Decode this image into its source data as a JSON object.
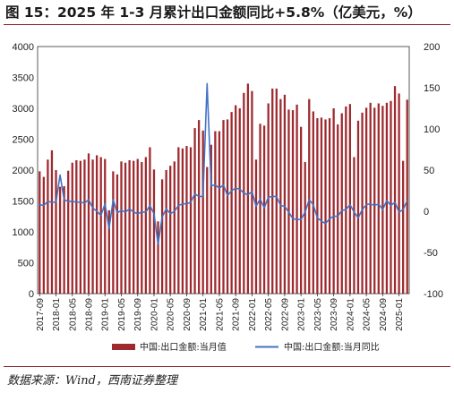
{
  "title": "图 15：2025 年 1-3 月累计出口金额同比+5.8%（亿美元，%）",
  "source": "数据来源：Wind，西南证券整理",
  "colors": {
    "bar": "#9e2a2f",
    "line": "#4472c4",
    "rule": "#8a1c22"
  },
  "chart_data": {
    "type": "bar+line",
    "x": [
      "2017-09",
      "2017-10",
      "2017-11",
      "2017-12",
      "2018-01",
      "2018-02",
      "2018-03",
      "2018-04",
      "2018-05",
      "2018-06",
      "2018-07",
      "2018-08",
      "2018-09",
      "2018-10",
      "2018-11",
      "2018-12",
      "2019-01",
      "2019-02",
      "2019-03",
      "2019-04",
      "2019-05",
      "2019-06",
      "2019-07",
      "2019-08",
      "2019-09",
      "2019-10",
      "2019-11",
      "2019-12",
      "2020-01",
      "2020-02",
      "2020-03",
      "2020-04",
      "2020-05",
      "2020-06",
      "2020-07",
      "2020-08",
      "2020-09",
      "2020-10",
      "2020-11",
      "2020-12",
      "2021-01",
      "2021-02",
      "2021-03",
      "2021-04",
      "2021-05",
      "2021-06",
      "2021-07",
      "2021-08",
      "2021-09",
      "2021-10",
      "2021-11",
      "2021-12",
      "2022-01",
      "2022-02",
      "2022-03",
      "2022-04",
      "2022-05",
      "2022-06",
      "2022-07",
      "2022-08",
      "2022-09",
      "2022-10",
      "2022-11",
      "2022-12",
      "2023-01",
      "2023-02",
      "2023-03",
      "2023-04",
      "2023-05",
      "2023-06",
      "2023-07",
      "2023-08",
      "2023-09",
      "2023-10",
      "2023-11",
      "2023-12",
      "2024-01",
      "2024-02",
      "2024-03",
      "2024-04",
      "2024-05",
      "2024-06",
      "2024-07",
      "2024-08",
      "2024-09",
      "2024-10",
      "2024-11",
      "2024-12",
      "2025-01",
      "2025-02",
      "2025-03"
    ],
    "x_tick_labels": [
      "2017-09",
      "2018-01",
      "2018-05",
      "2018-09",
      "2019-01",
      "2019-05",
      "2019-09",
      "2020-01",
      "2020-05",
      "2020-09",
      "2021-01",
      "2021-05",
      "2021-09",
      "2022-01",
      "2022-05",
      "2022-09",
      "2023-01",
      "2023-05",
      "2023-09",
      "2024-01",
      "2024-05",
      "2024-09",
      "2025-01"
    ],
    "series": [
      {
        "name": "中国:出口金额:当月值",
        "type": "bar",
        "axis": "left",
        "values": [
          1980,
          1890,
          2170,
          2320,
          2000,
          1730,
          1740,
          1990,
          2120,
          2160,
          2150,
          2170,
          2270,
          2170,
          2240,
          2210,
          2180,
          1350,
          1980,
          1930,
          2140,
          2120,
          2160,
          2150,
          2180,
          2130,
          2210,
          2370,
          2010,
          1170,
          1850,
          2000,
          2070,
          2140,
          2370,
          2350,
          2390,
          2370,
          2680,
          2810,
          2640,
          2050,
          2410,
          2630,
          2630,
          2810,
          2820,
          2940,
          3050,
          3000,
          3250,
          3400,
          3280,
          2170,
          2750,
          2720,
          3080,
          3320,
          3320,
          3150,
          3220,
          2980,
          2970,
          3060,
          2700,
          2130,
          3150,
          2950,
          2840,
          2850,
          2820,
          2840,
          3000,
          2740,
          2920,
          3030,
          3070,
          2210,
          2800,
          2930,
          3010,
          3090,
          3010,
          3080,
          3040,
          3090,
          3120,
          3360,
          3240,
          2150,
          3140
        ]
      },
      {
        "name": "中国:出口金额:当月同比",
        "type": "line",
        "axis": "right",
        "values": [
          8,
          7,
          12,
          11,
          11,
          44,
          14,
          12,
          12,
          11,
          11,
          10,
          14,
          4,
          0,
          -5,
          9,
          -21,
          14,
          -2,
          1,
          -1,
          3,
          -1,
          -3,
          -1,
          -1,
          7,
          -3,
          -40,
          -7,
          3,
          -3,
          0,
          7,
          9,
          9,
          11,
          21,
          18,
          18,
          155,
          31,
          32,
          28,
          32,
          19,
          25,
          28,
          27,
          22,
          20,
          24,
          6,
          15,
          4,
          17,
          18,
          18,
          7,
          6,
          -1,
          -9,
          -10,
          -10,
          -1,
          14,
          8,
          -8,
          -12,
          -15,
          -9,
          -6,
          -6,
          1,
          2,
          8,
          -1,
          -8,
          2,
          8,
          9,
          7,
          9,
          2,
          13,
          7,
          11,
          -1,
          2,
          13
        ]
      }
    ],
    "left_axis": {
      "ylim": [
        0,
        4000
      ],
      "ticks": [
        0,
        500,
        1000,
        1500,
        2000,
        2500,
        3000,
        3500,
        4000
      ]
    },
    "right_axis": {
      "ylim": [
        -100,
        200
      ],
      "ticks": [
        -100,
        -50,
        0,
        50,
        100,
        150,
        200
      ]
    },
    "legend": {
      "position": "bottom",
      "items": [
        {
          "label": "中国:出口金额:当月值",
          "kind": "bar"
        },
        {
          "label": "中国:出口金额:当月同比",
          "kind": "line"
        }
      ]
    },
    "grid": false
  }
}
